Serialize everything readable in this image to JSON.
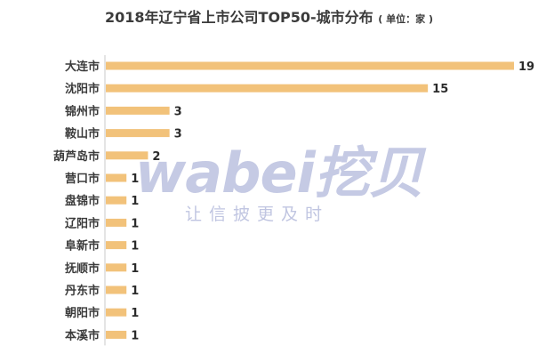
{
  "chart_data": {
    "type": "bar",
    "orientation": "horizontal",
    "title": "2018年辽宁省上市公司TOP50-城市分布",
    "unit_note": "( 单位：家 )",
    "categories": [
      "大连市",
      "沈阳市",
      "锦州市",
      "鞍山市",
      "葫芦岛市",
      "营口市",
      "盘锦市",
      "辽阳市",
      "阜新市",
      "抚顺市",
      "丹东市",
      "朝阳市",
      "本溪市"
    ],
    "values": [
      19,
      15,
      3,
      3,
      2,
      1,
      1,
      1,
      1,
      1,
      1,
      1,
      1
    ],
    "xlim": [
      0,
      19
    ],
    "bar_color": "#f2c27a",
    "axis_color": "#c8c8c8",
    "grid": false,
    "legend": "none"
  },
  "watermark": {
    "main": "wabei挖贝",
    "sub": "让信披更及时"
  }
}
